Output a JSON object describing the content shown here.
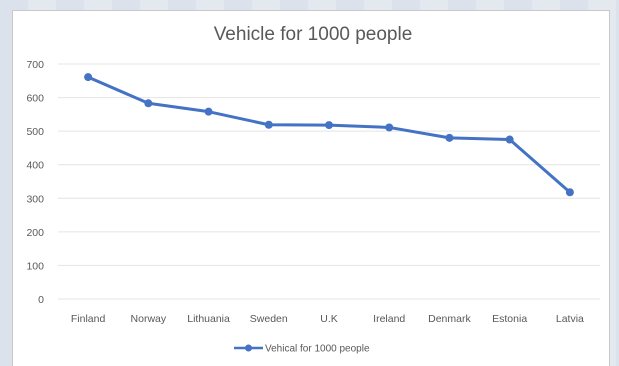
{
  "chart_data": {
    "type": "line",
    "title": "Vehicle for 1000 people",
    "xlabel": "",
    "ylabel": "",
    "ylim": [
      0,
      700
    ],
    "yticks": [
      0,
      100,
      200,
      300,
      400,
      500,
      600,
      700
    ],
    "categories": [
      "Finland",
      "Norway",
      "Lithuania",
      "Sweden",
      "U.K",
      "Ireland",
      "Denmark",
      "Estonia",
      "Latvia"
    ],
    "series": [
      {
        "name": "Vehical for 1000 people",
        "values": [
          661,
          583,
          558,
          519,
          518,
          511,
          480,
          475,
          318
        ],
        "color": "#4472c4"
      }
    ],
    "grid": true,
    "legend": "bottom"
  }
}
